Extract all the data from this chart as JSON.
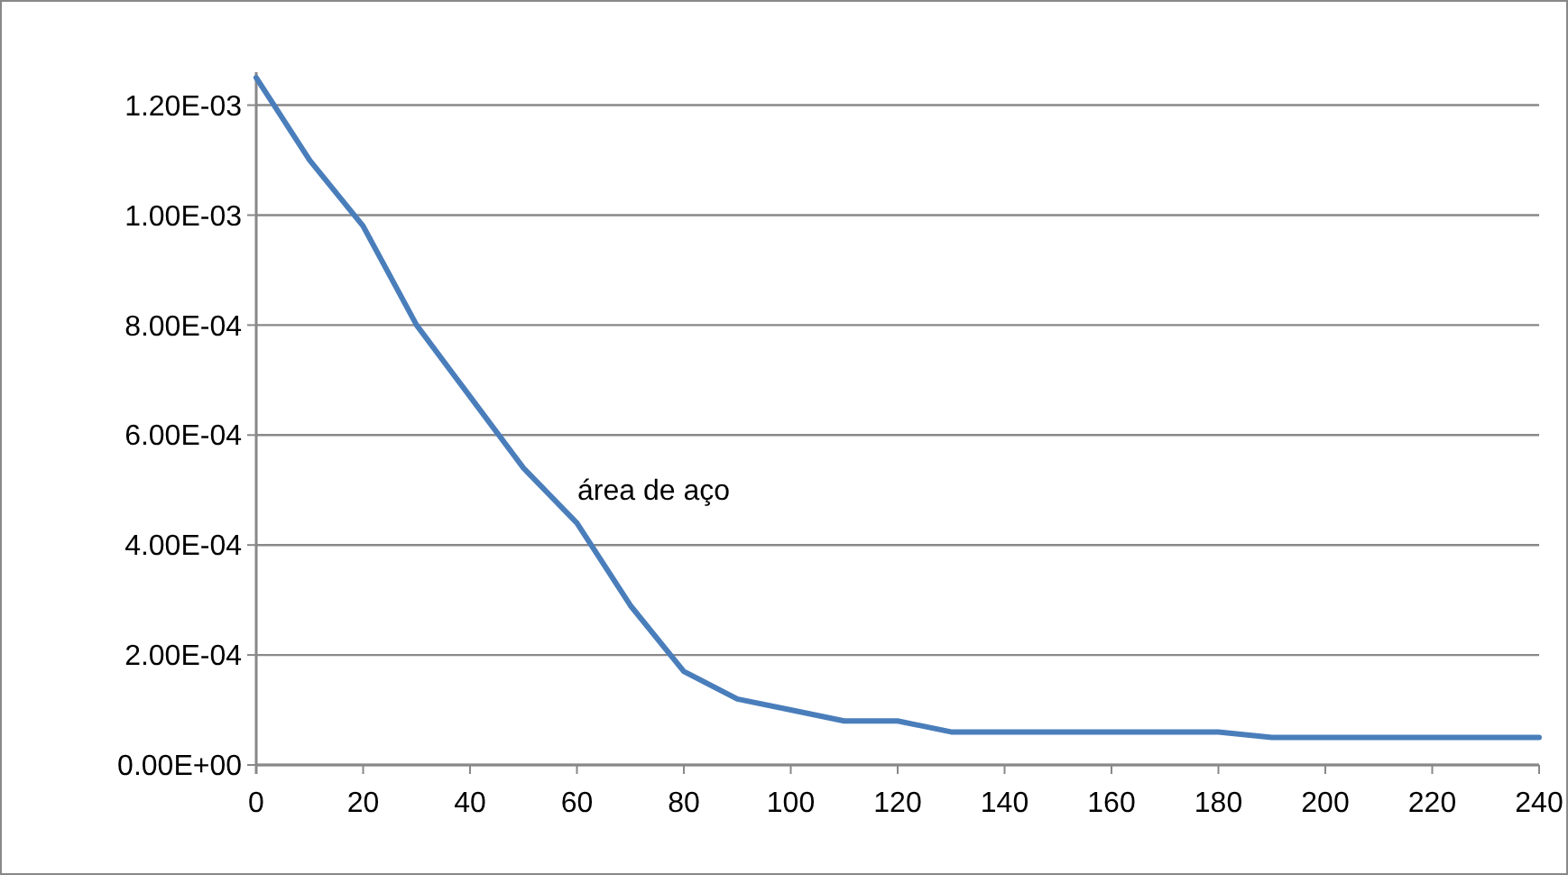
{
  "chart_data": {
    "type": "line",
    "x": [
      0,
      10,
      20,
      30,
      40,
      50,
      60,
      70,
      80,
      90,
      100,
      110,
      120,
      130,
      140,
      150,
      160,
      170,
      180,
      190,
      200,
      210,
      220,
      230,
      240
    ],
    "series": [
      {
        "color": "#4a7ebb",
        "values": [
          0.00125,
          0.0011,
          0.00098,
          0.0008,
          0.00067,
          0.00054,
          0.00044,
          0.00029,
          0.00017,
          0.00012,
          0.0001,
          8e-05,
          8e-05,
          6e-05,
          6e-05,
          6e-05,
          6e-05,
          6e-05,
          6e-05,
          5e-05,
          5e-05,
          5e-05,
          5e-05,
          5e-05,
          5e-05
        ]
      }
    ],
    "xlim": [
      0,
      240
    ],
    "xticks": [
      0,
      20,
      40,
      60,
      80,
      100,
      120,
      140,
      160,
      180,
      200,
      220,
      240
    ],
    "ylim": [
      0,
      0.00126
    ],
    "yticks": [
      {
        "value": 0,
        "label": "0.00E+00"
      },
      {
        "value": 0.0002,
        "label": "2.00E-04"
      },
      {
        "value": 0.0004,
        "label": "4.00E-04"
      },
      {
        "value": 0.0006,
        "label": "6.00E-04"
      },
      {
        "value": 0.0008,
        "label": "8.00E-04"
      },
      {
        "value": 0.001,
        "label": "1.00E-03"
      },
      {
        "value": 0.0012,
        "label": "1.20E-03"
      }
    ],
    "grid": "y",
    "marker": "none",
    "line_style": "solid",
    "annotations": [
      "área de aço"
    ]
  }
}
